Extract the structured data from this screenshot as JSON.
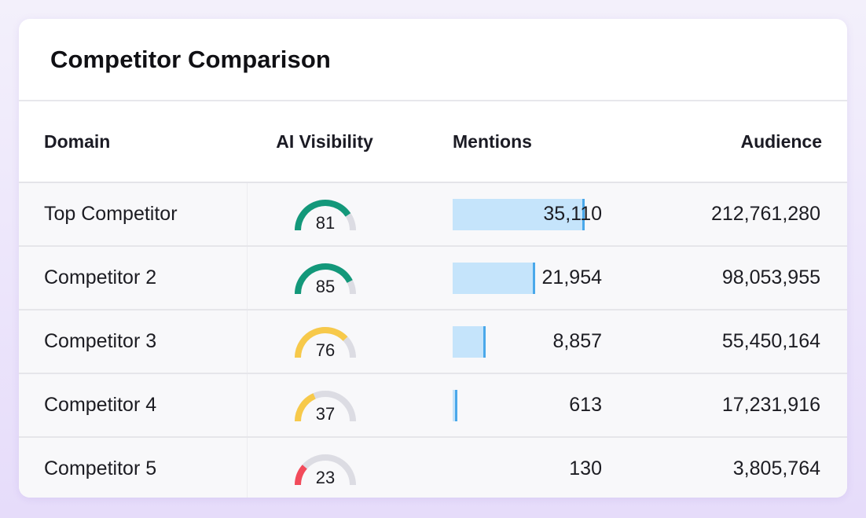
{
  "card": {
    "title": "Competitor Comparison"
  },
  "table": {
    "columns": {
      "domain": "Domain",
      "ai_visibility": "AI Visibility",
      "mentions": "Mentions",
      "audience": "Audience"
    },
    "mentions_max": 35110,
    "rows": [
      {
        "domain": "Top Competitor",
        "ai_visibility": 81,
        "gauge_color": "#13987a",
        "mentions": "35,110",
        "mentions_value": 35110,
        "audience": "212,761,280"
      },
      {
        "domain": "Competitor 2",
        "ai_visibility": 85,
        "gauge_color": "#13987a",
        "mentions": "21,954",
        "mentions_value": 21954,
        "audience": "98,053,955"
      },
      {
        "domain": "Competitor 3",
        "ai_visibility": 76,
        "gauge_color": "#f7c94a",
        "mentions": "8,857",
        "mentions_value": 8857,
        "audience": "55,450,164"
      },
      {
        "domain": "Competitor 4",
        "ai_visibility": 37,
        "gauge_color": "#f7c94a",
        "mentions": "613",
        "mentions_value": 613,
        "audience": "17,231,916"
      },
      {
        "domain": "Competitor 5",
        "ai_visibility": 23,
        "gauge_color": "#f24b5b",
        "mentions": "130",
        "mentions_value": 130,
        "audience": "3,805,764"
      }
    ]
  },
  "colors": {
    "gauge_track": "#dcdce3",
    "bar_fill": "#c5e4fb",
    "bar_edge": "#4aa8ea"
  }
}
